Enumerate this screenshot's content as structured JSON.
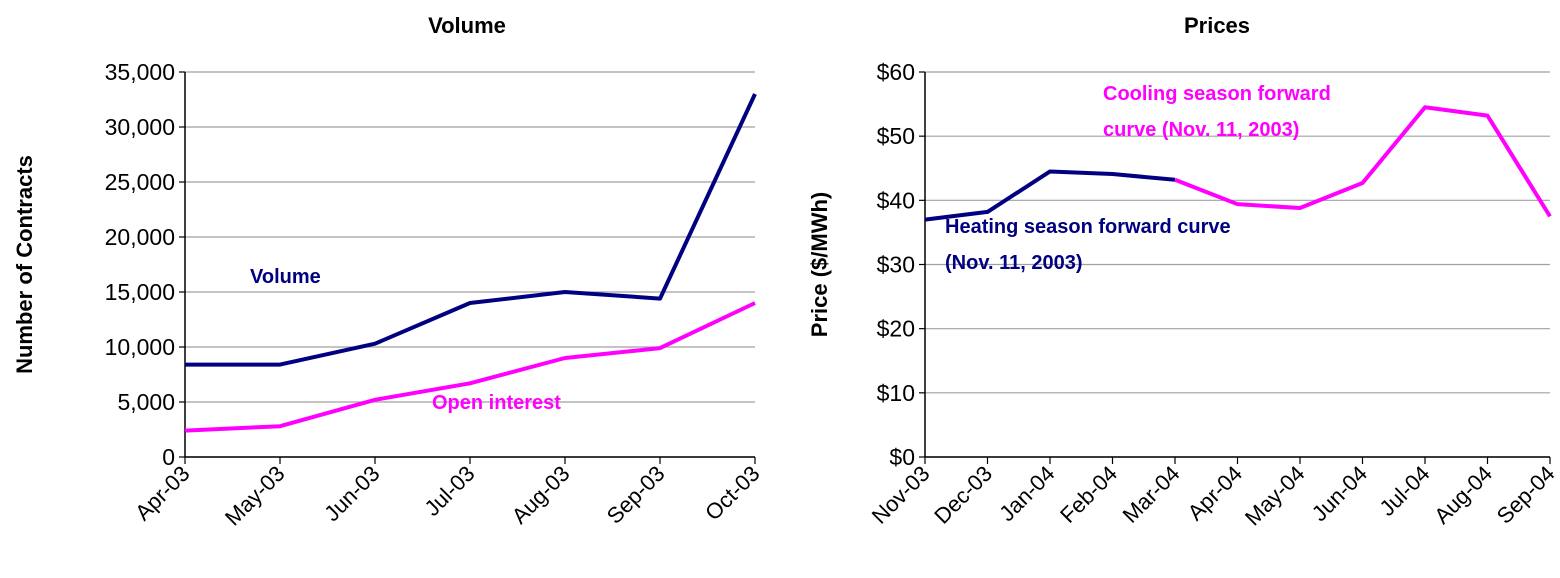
{
  "chart_data": [
    {
      "type": "line",
      "title": "Volume",
      "y_label": "Number of Contracts",
      "categories": [
        "Apr-03",
        "May-03",
        "Jun-03",
        "Jul-03",
        "Aug-03",
        "Sep-03",
        "Oct-03"
      ],
      "series": [
        {
          "name": "Volume",
          "color": "#000080",
          "values": [
            8400,
            8400,
            10300,
            14000,
            15000,
            14400,
            33000
          ]
        },
        {
          "name": "Open interest",
          "color": "#ff00ff",
          "values": [
            2400,
            2800,
            5200,
            6700,
            9000,
            9900,
            14000
          ]
        }
      ],
      "ylim": [
        0,
        35000
      ],
      "yticks": [
        0,
        {
          "value": 5000,
          "label": "5,000"
        },
        {
          "value": 10000,
          "label": "10,000"
        },
        {
          "value": 15000,
          "label": "15,000"
        },
        {
          "value": 20000,
          "label": "20,000"
        },
        {
          "value": 25000,
          "label": "25,000"
        },
        {
          "value": 30000,
          "label": "30,000"
        },
        {
          "value": 35000,
          "label": "35,000"
        }
      ],
      "grid": true
    },
    {
      "type": "line",
      "title": "Prices",
      "y_label": "Price ($/MWh)",
      "categories": [
        "Nov-03",
        "Dec-03",
        "Jan-04",
        "Feb-04",
        "Mar-04",
        "Apr-04",
        "May-04",
        "Jun-04",
        "Jul-04",
        "Aug-04",
        "Sep-04"
      ],
      "series": [
        {
          "name": [
            "Heating season forward curve",
            "(Nov. 11, 2003)"
          ],
          "color": "#000080",
          "values": [
            37,
            38.2,
            44.5,
            44.1,
            43.2,
            null,
            null,
            null,
            null,
            null,
            null
          ]
        },
        {
          "name": [
            "Cooling season forward",
            "curve (Nov. 11, 2003)"
          ],
          "color": "#ff00ff",
          "values": [
            null,
            null,
            null,
            null,
            43.2,
            39.4,
            38.8,
            42.7,
            54.5,
            53.2,
            37.5
          ]
        }
      ],
      "ylim": [
        0,
        60
      ],
      "yticks": [
        {
          "value": 0,
          "label": "$0"
        },
        {
          "value": 10,
          "label": "$10"
        },
        {
          "value": 20,
          "label": "$20"
        },
        {
          "value": 30,
          "label": "$30"
        },
        {
          "value": 40,
          "label": "$40"
        },
        {
          "value": 50,
          "label": "$50"
        },
        {
          "value": 60,
          "label": "$60"
        }
      ],
      "grid": true
    }
  ]
}
